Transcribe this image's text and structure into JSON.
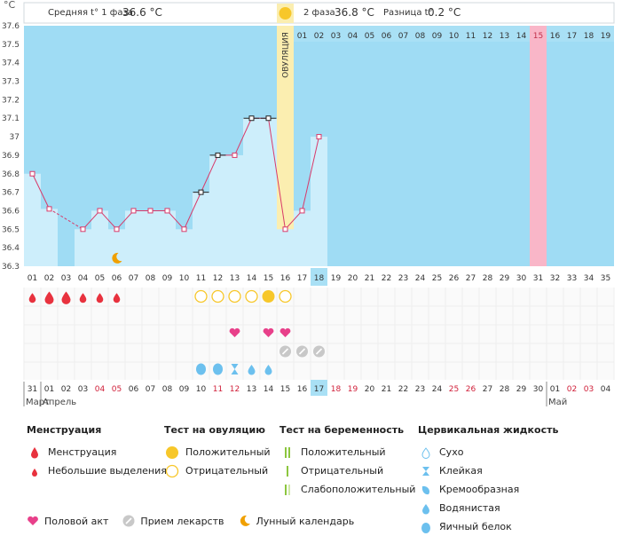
{
  "header": {
    "unit": "°C",
    "phase1_label": "Средняя t° 1 фаза",
    "phase1_value": "36.6 °C",
    "phase2_label": "2 фаза",
    "phase2_value": "36.8 °C",
    "diff_label": "Разница t°",
    "diff_value": "0.2 °C"
  },
  "ovulation_label": "ОВУЛЯЦИЯ",
  "colors": {
    "bg_blue": "#9fdcf4",
    "bar": "#cdeefb",
    "ovulation": "#fbeeb0",
    "period_end": "#f9b6c8",
    "line": "#d83a6a",
    "moon": "#f0a000",
    "heart": "#e8408a",
    "drop_red": "#e8323e",
    "test_yellow": "#f7c72a",
    "water": "#6cc0ee"
  },
  "chart_data": {
    "type": "line",
    "title": "",
    "ylim": [
      36.3,
      37.6
    ],
    "yticks": [
      "36.3",
      "36.4",
      "36.5",
      "36.6",
      "36.7",
      "36.8",
      "36.9",
      "37",
      "37.1",
      "37.2",
      "37.3",
      "37.4",
      "37.5",
      "37.6"
    ],
    "top_days": [
      "01",
      "02",
      "03",
      "04",
      "05",
      "06",
      "07",
      "08",
      "09",
      "10",
      "11",
      "12",
      "13",
      "14",
      "15",
      "16",
      "17",
      "18",
      "19"
    ],
    "cycle_days": [
      "01",
      "02",
      "03",
      "04",
      "05",
      "06",
      "07",
      "08",
      "09",
      "10",
      "11",
      "12",
      "13",
      "14",
      "15",
      "16",
      "17",
      "18",
      "19",
      "20",
      "21",
      "22",
      "23",
      "24",
      "25",
      "26",
      "27",
      "28",
      "29",
      "30",
      "31",
      "32",
      "33",
      "34",
      "35"
    ],
    "current_cycle_day": "18",
    "ovulation_day": 16,
    "highlight_day": 31,
    "temperatures": [
      36.8,
      36.61,
      null,
      36.5,
      36.6,
      36.5,
      36.6,
      36.6,
      36.6,
      36.5,
      36.7,
      36.9,
      36.9,
      37.1,
      37.1,
      36.5,
      36.6,
      37.0
    ],
    "crossed_days": [
      11,
      12,
      14,
      15
    ],
    "dashed_segments": [
      [
        2,
        4
      ]
    ],
    "moon_day": 6,
    "date_days": [
      {
        "label": "31",
        "red": false
      },
      {
        "label": "01",
        "red": false
      },
      {
        "label": "02",
        "red": false
      },
      {
        "label": "03",
        "red": false
      },
      {
        "label": "04",
        "red": true
      },
      {
        "label": "05",
        "red": true
      },
      {
        "label": "06",
        "red": false
      },
      {
        "label": "07",
        "red": false
      },
      {
        "label": "08",
        "red": false
      },
      {
        "label": "09",
        "red": false
      },
      {
        "label": "10",
        "red": false
      },
      {
        "label": "11",
        "red": true
      },
      {
        "label": "12",
        "red": true
      },
      {
        "label": "13",
        "red": false
      },
      {
        "label": "14",
        "red": false
      },
      {
        "label": "15",
        "red": false
      },
      {
        "label": "16",
        "red": false
      },
      {
        "label": "17",
        "red": false
      },
      {
        "label": "18",
        "red": true
      },
      {
        "label": "19",
        "red": true
      },
      {
        "label": "20",
        "red": false
      },
      {
        "label": "21",
        "red": false
      },
      {
        "label": "22",
        "red": false
      },
      {
        "label": "23",
        "red": false
      },
      {
        "label": "24",
        "red": false
      },
      {
        "label": "25",
        "red": true
      },
      {
        "label": "26",
        "red": true
      },
      {
        "label": "27",
        "red": false
      },
      {
        "label": "28",
        "red": false
      },
      {
        "label": "29",
        "red": false
      },
      {
        "label": "30",
        "red": false
      },
      {
        "label": "01",
        "red": false
      },
      {
        "label": "02",
        "red": true
      },
      {
        "label": "03",
        "red": true
      },
      {
        "label": "04",
        "red": false
      }
    ],
    "months": [
      {
        "label": "Март",
        "day": 1
      },
      {
        "label": "Апрель",
        "day": 2
      },
      {
        "label": "Май",
        "day": 32
      }
    ],
    "menstruation": [
      [
        1,
        "small"
      ],
      [
        2,
        "big"
      ],
      [
        3,
        "big"
      ],
      [
        4,
        "small"
      ],
      [
        5,
        "small"
      ],
      [
        6,
        "small"
      ]
    ],
    "ovulation_tests": [
      [
        11,
        "neg"
      ],
      [
        12,
        "neg"
      ],
      [
        13,
        "neg"
      ],
      [
        14,
        "neg"
      ],
      [
        15,
        "pos"
      ],
      [
        16,
        "neg"
      ]
    ],
    "intercourse": [
      13,
      15,
      16
    ],
    "medication": [
      16,
      17,
      18
    ],
    "cervical": [
      [
        11,
        "egg"
      ],
      [
        12,
        "egg"
      ],
      [
        13,
        "sticky"
      ],
      [
        14,
        "watery"
      ],
      [
        15,
        "watery"
      ]
    ]
  },
  "legend": {
    "menstruation": {
      "title": "Менструация",
      "items": [
        "Менструация",
        "Небольшие выделения"
      ]
    },
    "ovulation_test": {
      "title": "Тест на овуляцию",
      "items": [
        "Положительный",
        "Отрицательный"
      ]
    },
    "pregnancy_test": {
      "title": "Тест на беременность",
      "items": [
        "Положительный",
        "Отрицательный",
        "Слабоположительный"
      ]
    },
    "cervical": {
      "title": "Цервикальная жидкость",
      "items": [
        "Сухо",
        "Клейкая",
        "Кремообразная",
        "Водянистая",
        "Яичный белок"
      ]
    },
    "bottom": {
      "intercourse": "Половой акт",
      "medication": "Прием лекарств",
      "lunar": "Лунный календарь"
    }
  }
}
